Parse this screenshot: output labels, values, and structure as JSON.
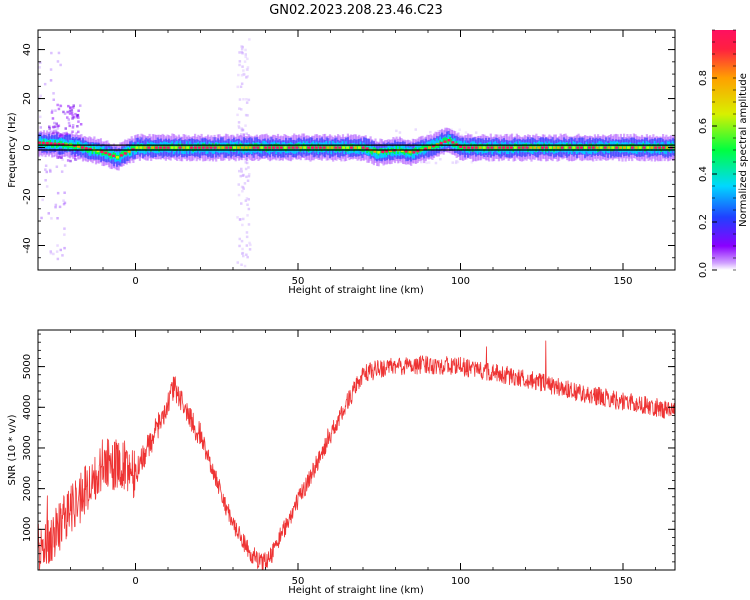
{
  "title": "GN02.2023.208.23.46.C23",
  "colors": {
    "snr_line": "#ee3333",
    "baseline": "#000000",
    "colormap": [
      "#ffffff",
      "#8a00ff",
      "#2040ff",
      "#00d8ff",
      "#00ff40",
      "#d8f000",
      "#ffa000",
      "#ff1060"
    ]
  },
  "chart_data": [
    {
      "type": "heatmap",
      "xlabel": "Height of straight line (km)",
      "ylabel": "Frequency (Hz)",
      "xlim": [
        -30,
        166
      ],
      "ylim": [
        -50,
        48
      ],
      "xticks": [
        0,
        50,
        100,
        150
      ],
      "yticks": [
        -40,
        -20,
        0,
        20,
        40
      ],
      "colorbar": {
        "label": "Normalized spectral amplitude",
        "range": [
          0,
          1
        ],
        "ticks": [
          0.0,
          0.2,
          0.4,
          0.6,
          0.8
        ]
      },
      "baseline_hz": 0,
      "ridge": {
        "x": [
          -30,
          -20,
          -10,
          -6,
          0,
          30,
          70,
          74,
          80,
          85,
          90,
          96,
          100,
          166
        ],
        "freq": [
          2,
          1,
          -2,
          -4,
          0,
          0,
          0,
          -2,
          -1,
          -2,
          0,
          3,
          0,
          0
        ]
      }
    },
    {
      "type": "line",
      "xlabel": "Height of straight line (km)",
      "ylabel": "SNR (10 * v/v)",
      "xlim": [
        -30,
        166
      ],
      "ylim": [
        0,
        5900
      ],
      "xticks": [
        0,
        50,
        100,
        150
      ],
      "yticks": [
        1000,
        2000,
        3000,
        4000,
        5000
      ],
      "series": [
        {
          "x": [
            -30,
            -25,
            -20,
            -15,
            -10,
            -5,
            0,
            5,
            10,
            12,
            15,
            20,
            25,
            30,
            35,
            39,
            42,
            45,
            50,
            55,
            60,
            65,
            70,
            75,
            80,
            90,
            100,
            110,
            120,
            130,
            140,
            150,
            160,
            166
          ],
          "values": [
            500,
            900,
            1500,
            2000,
            2600,
            2600,
            2400,
            3200,
            4100,
            4500,
            4000,
            3300,
            2200,
            1100,
            450,
            150,
            400,
            900,
            1700,
            2500,
            3300,
            4100,
            4800,
            4950,
            5000,
            5050,
            5000,
            4850,
            4700,
            4500,
            4300,
            4150,
            4000,
            3900
          ]
        }
      ]
    }
  ]
}
